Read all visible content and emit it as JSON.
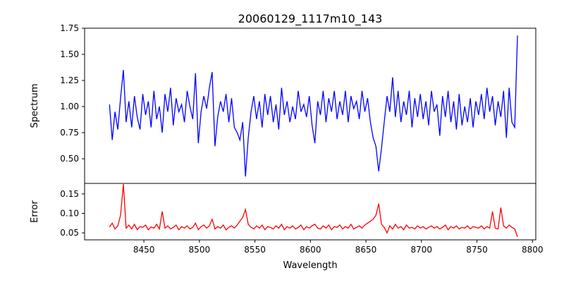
{
  "chart_data": [
    {
      "type": "line",
      "title": "20060129_1117m10_143",
      "xlabel": "",
      "ylabel": "Spectrum",
      "color": "#0000ff",
      "xlim": [
        8396.6,
        8803
      ],
      "ylim": [
        0.264,
        1.75
      ],
      "yticks": [
        "1.75",
        "1.50",
        "1.25",
        "1.00",
        "0.75",
        "0.50"
      ],
      "ytick_values": [
        1.75,
        1.5,
        1.25,
        1.0,
        0.75,
        0.5
      ],
      "x_start": 8419,
      "x_step": 2.5,
      "values": [
        1.02,
        0.68,
        0.95,
        0.78,
        1.08,
        1.35,
        0.85,
        1.05,
        0.8,
        1.1,
        0.9,
        0.78,
        1.12,
        0.92,
        1.05,
        0.8,
        1.15,
        0.88,
        1.0,
        0.75,
        1.12,
        0.95,
        1.18,
        0.82,
        1.08,
        0.95,
        1.02,
        0.85,
        1.15,
        1.0,
        0.88,
        1.32,
        0.65,
        0.95,
        1.1,
        0.98,
        1.18,
        1.33,
        0.62,
        0.9,
        1.05,
        0.95,
        1.12,
        0.85,
        1.08,
        0.8,
        0.75,
        0.68,
        0.85,
        0.33,
        0.7,
        0.95,
        1.1,
        0.88,
        1.05,
        0.8,
        1.12,
        0.92,
        1.1,
        0.85,
        1.02,
        0.78,
        1.18,
        0.92,
        1.05,
        0.85,
        1.0,
        0.88,
        1.15,
        0.95,
        1.02,
        0.9,
        1.1,
        0.82,
        0.65,
        1.05,
        0.92,
        1.15,
        0.85,
        1.08,
        0.95,
        1.15,
        0.88,
        1.05,
        0.92,
        1.15,
        0.85,
        1.1,
        0.98,
        1.05,
        0.88,
        1.15,
        0.95,
        1.08,
        0.85,
        0.7,
        0.62,
        0.38,
        0.6,
        0.85,
        1.1,
        0.95,
        1.28,
        0.9,
        1.15,
        0.85,
        1.05,
        0.92,
        1.15,
        0.8,
        1.08,
        0.9,
        1.12,
        0.88,
        1.05,
        0.82,
        1.15,
        0.95,
        1.02,
        0.72,
        1.1,
        0.9,
        1.15,
        0.85,
        1.05,
        0.78,
        1.12,
        0.82,
        1.0,
        0.85,
        1.08,
        0.8,
        1.05,
        0.92,
        1.12,
        0.88,
        1.18,
        0.95,
        1.1,
        0.82,
        1.05,
        0.9,
        1.15,
        0.7,
        1.18,
        0.85,
        0.8,
        1.68
      ]
    },
    {
      "type": "line",
      "xlabel": "Wavelength",
      "ylabel": "Error",
      "color": "#ff0000",
      "xlim": [
        8396.6,
        8803
      ],
      "ylim": [
        0.032,
        0.177
      ],
      "yticks": [
        "0.15",
        "0.10",
        "0.05"
      ],
      "ytick_values": [
        0.15,
        0.1,
        0.05
      ],
      "xticks": [
        "8450",
        "8500",
        "8550",
        "8600",
        "8650",
        "8700",
        "8750",
        "8800"
      ],
      "xtick_values": [
        8450,
        8500,
        8550,
        8600,
        8650,
        8700,
        8750,
        8800
      ],
      "x_start": 8419,
      "x_step": 2.5,
      "values": [
        0.065,
        0.075,
        0.06,
        0.068,
        0.095,
        0.175,
        0.062,
        0.07,
        0.06,
        0.072,
        0.058,
        0.066,
        0.064,
        0.07,
        0.058,
        0.065,
        0.062,
        0.072,
        0.06,
        0.105,
        0.062,
        0.068,
        0.06,
        0.064,
        0.07,
        0.058,
        0.066,
        0.062,
        0.068,
        0.06,
        0.064,
        0.075,
        0.058,
        0.066,
        0.07,
        0.062,
        0.068,
        0.085,
        0.06,
        0.066,
        0.062,
        0.07,
        0.058,
        0.064,
        0.068,
        0.062,
        0.07,
        0.08,
        0.09,
        0.11,
        0.072,
        0.064,
        0.06,
        0.068,
        0.062,
        0.07,
        0.058,
        0.066,
        0.064,
        0.06,
        0.068,
        0.062,
        0.072,
        0.058,
        0.066,
        0.062,
        0.068,
        0.06,
        0.064,
        0.07,
        0.058,
        0.066,
        0.062,
        0.068,
        0.072,
        0.062,
        0.06,
        0.068,
        0.062,
        0.07,
        0.058,
        0.066,
        0.064,
        0.07,
        0.06,
        0.066,
        0.062,
        0.072,
        0.06,
        0.064,
        0.068,
        0.062,
        0.07,
        0.075,
        0.08,
        0.085,
        0.095,
        0.125,
        0.072,
        0.064,
        0.05,
        0.068,
        0.06,
        0.072,
        0.062,
        0.066,
        0.058,
        0.07,
        0.062,
        0.064,
        0.06,
        0.068,
        0.062,
        0.066,
        0.06,
        0.064,
        0.068,
        0.062,
        0.066,
        0.06,
        0.064,
        0.07,
        0.058,
        0.066,
        0.062,
        0.068,
        0.06,
        0.064,
        0.062,
        0.068,
        0.06,
        0.066,
        0.064,
        0.062,
        0.068,
        0.06,
        0.066,
        0.062,
        0.105,
        0.062,
        0.06,
        0.115,
        0.068,
        0.062,
        0.07,
        0.064,
        0.06,
        0.04
      ]
    }
  ]
}
